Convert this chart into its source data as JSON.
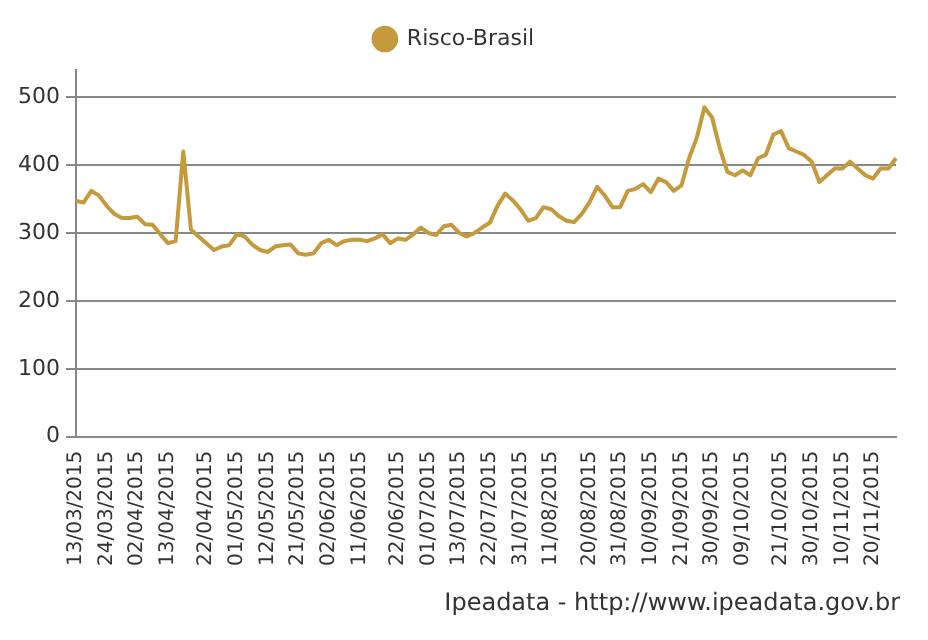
{
  "chart_data": {
    "type": "line",
    "categories": [
      "13/03/2015",
      null,
      null,
      null,
      "24/03/2015",
      null,
      null,
      null,
      "02/04/2015",
      null,
      null,
      null,
      "13/04/2015",
      null,
      null,
      null,
      null,
      "22/04/2015",
      null,
      null,
      null,
      "01/05/2015",
      null,
      null,
      null,
      "12/05/2015",
      null,
      null,
      null,
      "21/05/2015",
      null,
      null,
      null,
      "02/06/2015",
      null,
      null,
      null,
      "11/06/2015",
      null,
      null,
      null,
      null,
      "22/06/2015",
      null,
      null,
      null,
      "01/07/2015",
      null,
      null,
      null,
      "13/07/2015",
      null,
      null,
      null,
      "22/07/2015",
      null,
      null,
      null,
      "31/07/2015",
      null,
      null,
      null,
      "11/08/2015",
      null,
      null,
      null,
      null,
      "20/08/2015",
      null,
      null,
      null,
      "31/08/2015",
      null,
      null,
      null,
      "10/09/2015",
      null,
      null,
      null,
      "21/09/2015",
      null,
      null,
      null,
      "30/09/2015",
      null,
      null,
      null,
      "09/10/2015",
      null,
      null,
      null,
      null,
      "21/10/2015",
      null,
      null,
      null,
      "30/10/2015",
      null,
      null,
      null,
      "10/11/2015",
      null,
      null,
      null,
      "20/11/2015",
      null,
      null,
      null
    ],
    "series": [
      {
        "name": "Risco-Brasil",
        "color": "#c49a3c",
        "values": [
          347,
          345,
          362,
          355,
          340,
          328,
          322,
          322,
          324,
          313,
          312,
          298,
          285,
          288,
          420,
          305,
          295,
          285,
          275,
          280,
          282,
          298,
          295,
          283,
          275,
          272,
          280,
          282,
          283,
          270,
          268,
          270,
          285,
          290,
          282,
          288,
          290,
          290,
          288,
          292,
          298,
          285,
          292,
          290,
          298,
          308,
          300,
          297,
          310,
          312,
          300,
          295,
          300,
          308,
          315,
          340,
          358,
          348,
          335,
          318,
          322,
          338,
          335,
          325,
          318,
          316,
          328,
          345,
          368,
          355,
          338,
          338,
          362,
          365,
          372,
          360,
          380,
          375,
          362,
          370,
          410,
          440,
          485,
          470,
          425,
          390,
          385,
          392,
          385,
          410,
          415,
          445,
          450,
          425,
          420,
          415,
          405,
          375,
          385,
          395,
          395,
          405,
          395,
          385,
          380,
          395,
          395,
          410
        ]
      }
    ],
    "ylim": [
      0,
      540
    ],
    "yticks": [
      0,
      100,
      200,
      300,
      400,
      500
    ],
    "grid": "y",
    "legend": "top",
    "annotations": [
      "Ipeadata - http://www.ipeadata.gov.br"
    ]
  }
}
